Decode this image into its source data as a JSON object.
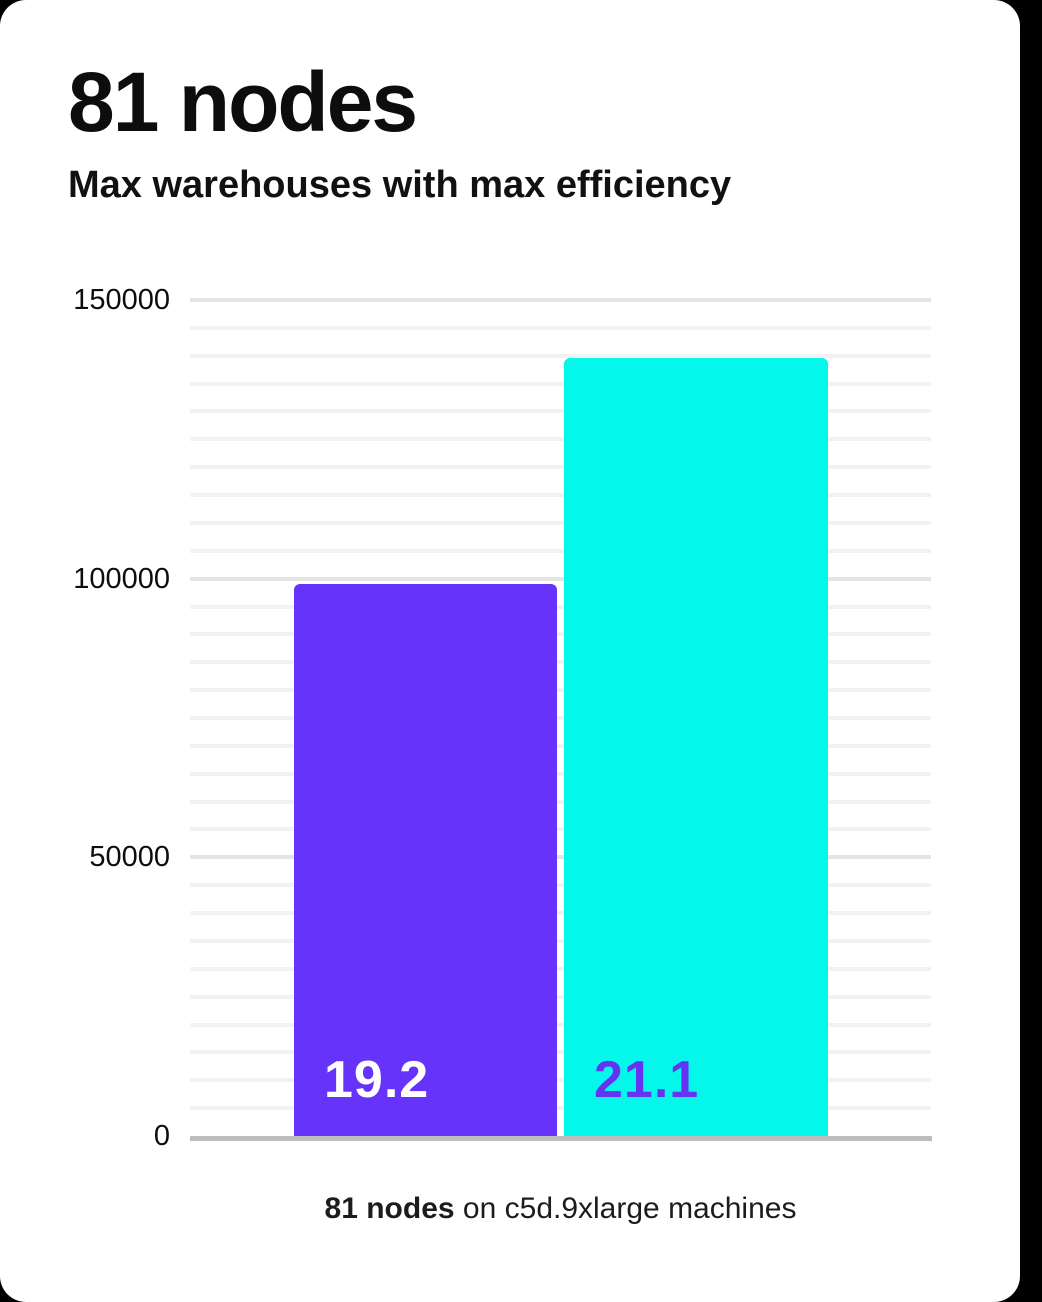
{
  "page": {
    "background_color": "#000000",
    "card_background_color": "#ffffff"
  },
  "header": {
    "title": "81 nodes",
    "subtitle": "Max warehouses with max efficiency"
  },
  "caption": {
    "bold": "81 nodes",
    "rest": " on c5d.9xlarge machines"
  },
  "colors": {
    "bar_purple": "#6633fb",
    "bar_cyan": "#04f7eb",
    "label_on_purple": "#ffffff",
    "label_on_cyan": "#6633f2",
    "gridline_minor": "#f2f2f2",
    "gridline_major": "#e4e4e4",
    "axis_line": "#bdbdbd"
  },
  "chart_data": {
    "type": "bar",
    "title": "81 nodes",
    "subtitle": "Max warehouses with max efficiency",
    "categories": [
      "19.2",
      "21.1"
    ],
    "values": [
      99000,
      139600
    ],
    "bar_labels": [
      "19.2",
      "21.1"
    ],
    "bar_colors": [
      "#6633fb",
      "#04f7eb"
    ],
    "bar_label_colors": [
      "#ffffff",
      "#6633f2"
    ],
    "xlabel": "",
    "ylabel": "",
    "ylim": [
      0,
      150000
    ],
    "yticks": [
      0,
      50000,
      100000,
      150000
    ],
    "ytick_labels": [
      "0",
      "50000",
      "100000",
      "150000"
    ],
    "minor_grid_step": 5000,
    "major_grid_step": 50000,
    "grid": true,
    "legend": false,
    "caption": "81 nodes on c5d.9xlarge machines"
  }
}
